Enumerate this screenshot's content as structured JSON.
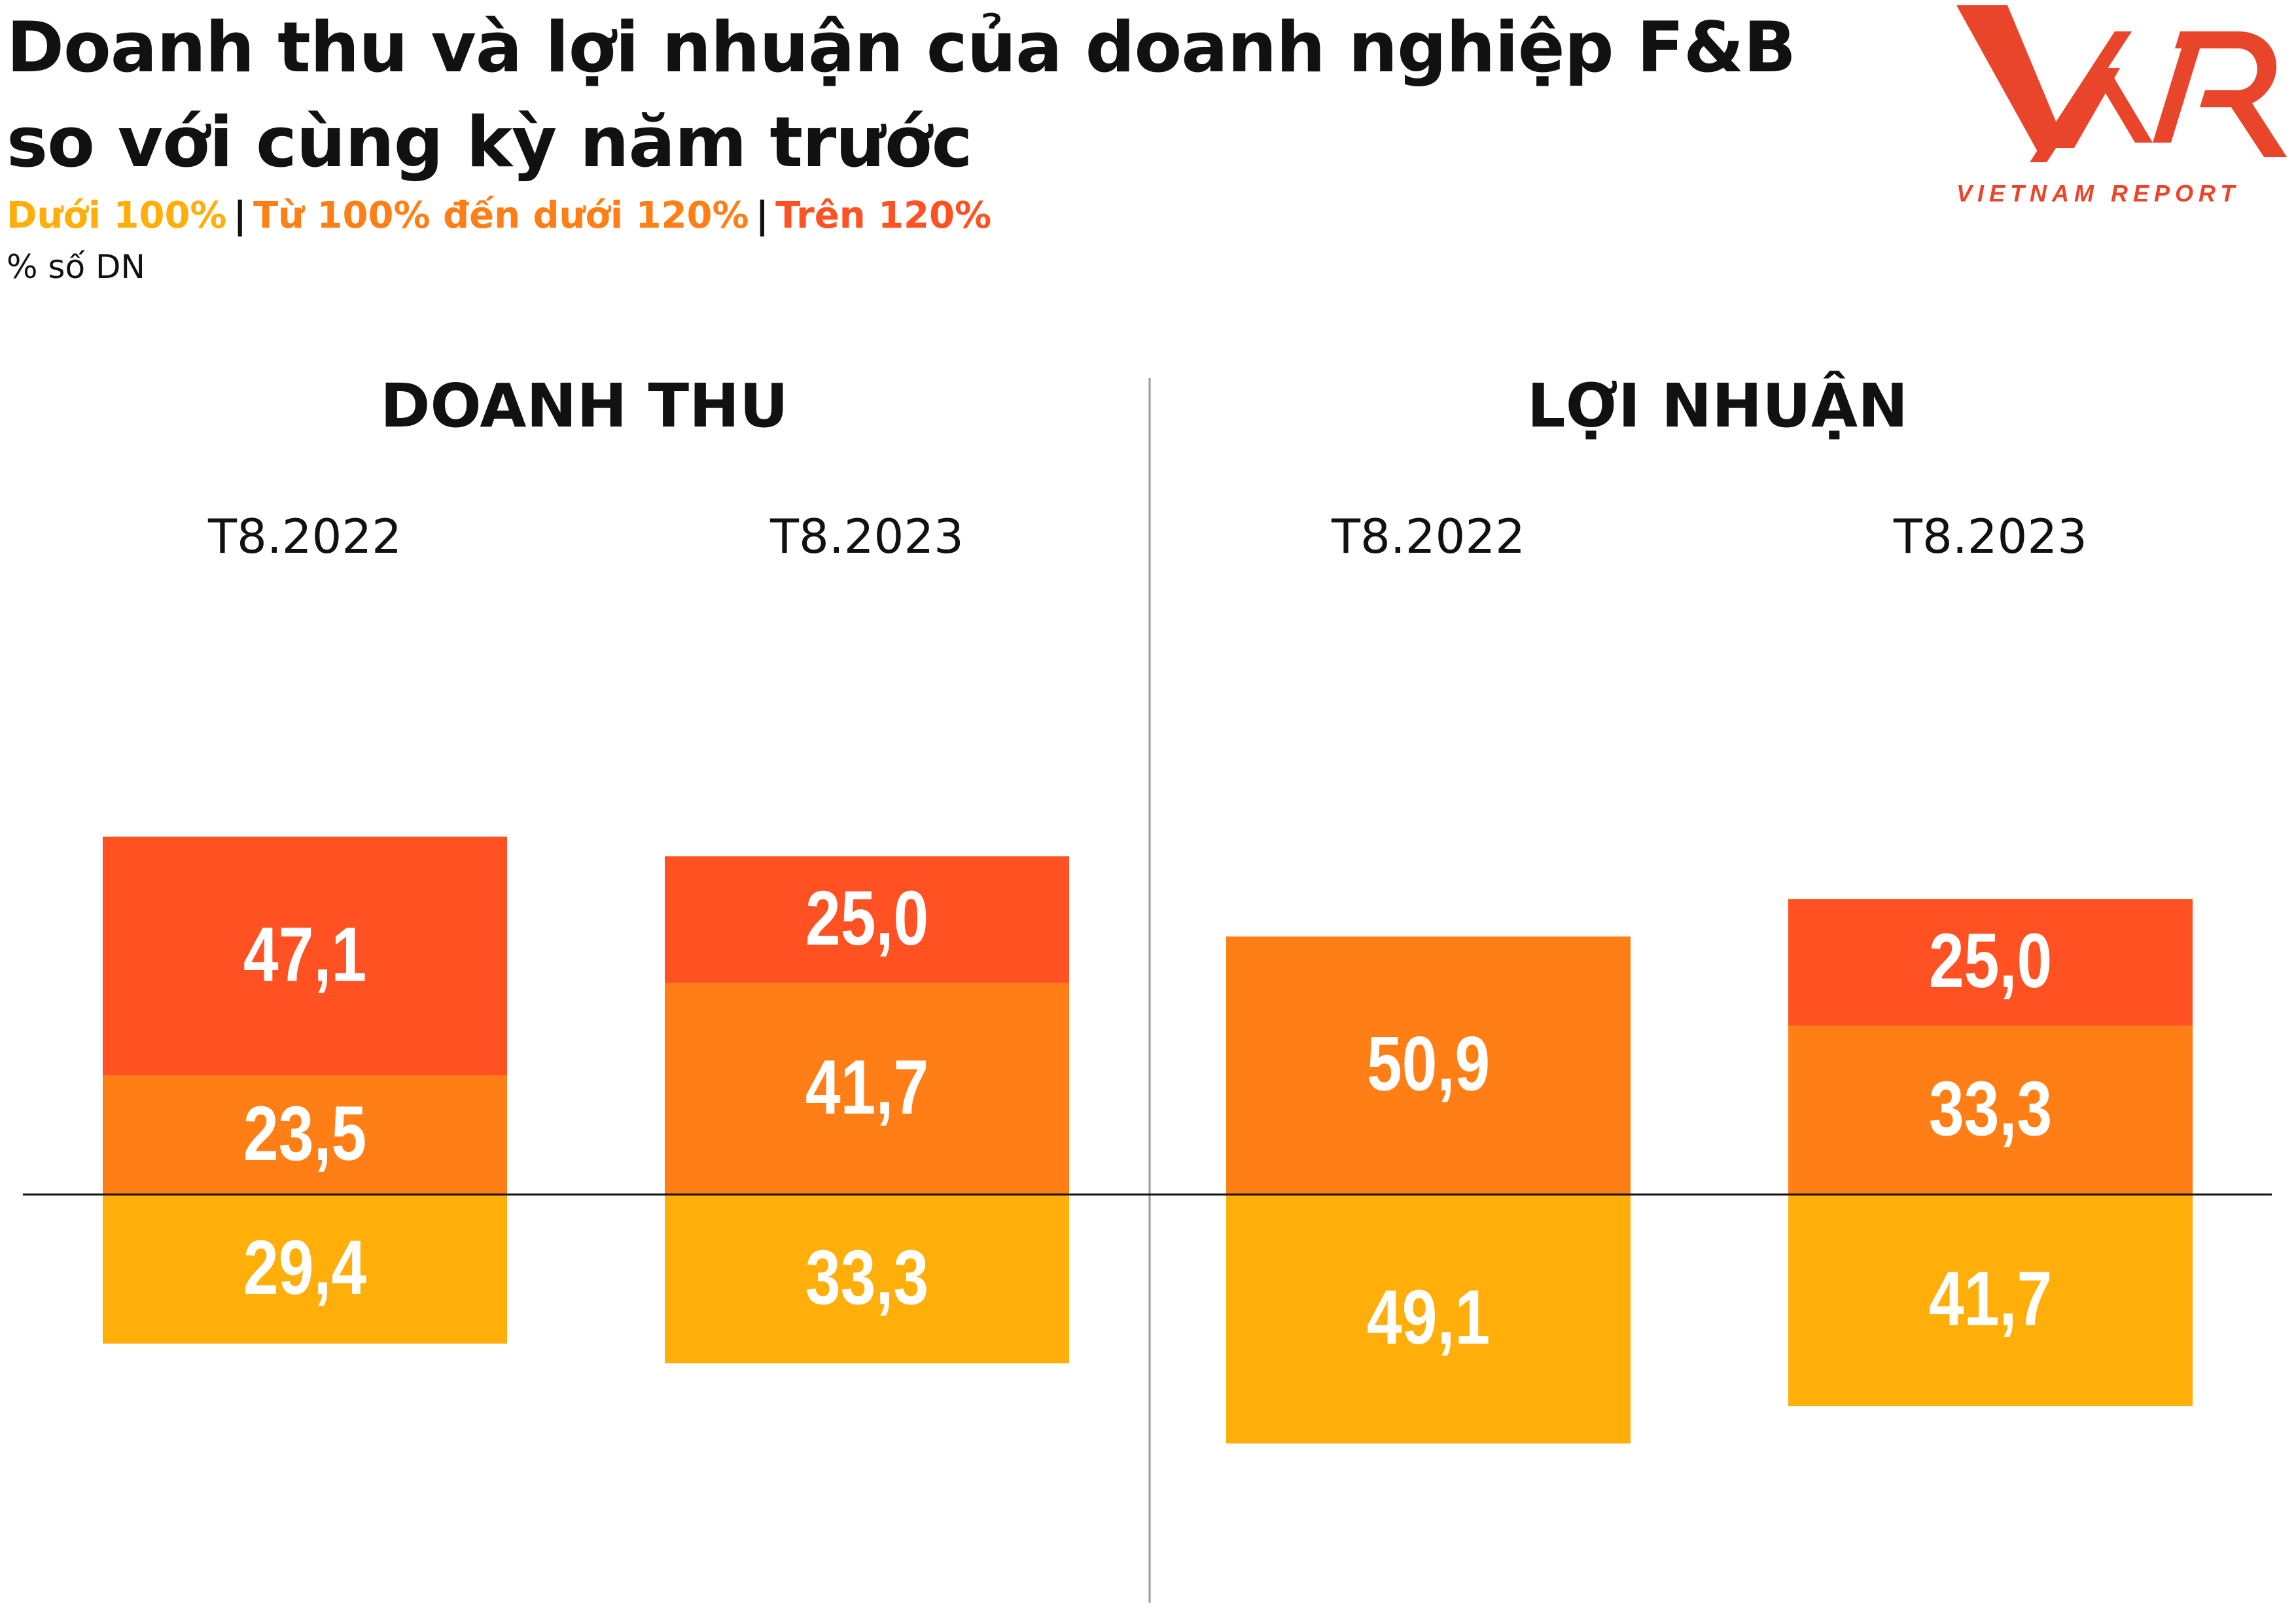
{
  "header": {
    "title_line1": "Doanh thu và lợi nhuận của doanh nghiệp F&B",
    "title_line2": "so với cùng kỳ năm trước",
    "unit": "% số DN"
  },
  "legend": {
    "items": [
      {
        "label": "Dưới 100%",
        "color": "#FFAE0A"
      },
      {
        "label": "Từ 100% đến dưới 120%",
        "color": "#FF7F16"
      },
      {
        "label": "Trên 120%",
        "color": "#FF5121"
      }
    ],
    "separator": "|"
  },
  "logo": {
    "mark": "VNR",
    "tagline": "VIETNAM REPORT",
    "color": "#E9452A"
  },
  "chart_data": {
    "type": "bar",
    "stacked": true,
    "baseline_note": "Dưới 100% plotted below zero line; other categories stacked above",
    "panels": [
      {
        "title": "DOANH THU",
        "categories": [
          "T8.2022",
          "T8.2023"
        ],
        "series": [
          {
            "name": "Dưới 100%",
            "values": [
              29.4,
              33.3
            ],
            "labels": [
              "29,4",
              "33,3"
            ],
            "direction": "down"
          },
          {
            "name": "Từ 100% đến dưới 120%",
            "values": [
              23.5,
              41.7
            ],
            "labels": [
              "23,5",
              "41,7"
            ],
            "direction": "up"
          },
          {
            "name": "Trên 120%",
            "values": [
              47.1,
              25.0
            ],
            "labels": [
              "47,1",
              "25,0"
            ],
            "direction": "up"
          }
        ]
      },
      {
        "title": "LỢI NHUẬN",
        "categories": [
          "T8.2022",
          "T8.2023"
        ],
        "series": [
          {
            "name": "Dưới 100%",
            "values": [
              49.1,
              41.7
            ],
            "labels": [
              "49,1",
              "41,7"
            ],
            "direction": "down"
          },
          {
            "name": "Từ 100% đến dưới 120%",
            "values": [
              50.9,
              33.3
            ],
            "labels": [
              "50,9",
              "33,3"
            ],
            "direction": "up"
          },
          {
            "name": "Trên 120%",
            "values": [
              0,
              25.0
            ],
            "labels": [
              "",
              "25,0"
            ],
            "direction": "up"
          }
        ]
      }
    ]
  }
}
